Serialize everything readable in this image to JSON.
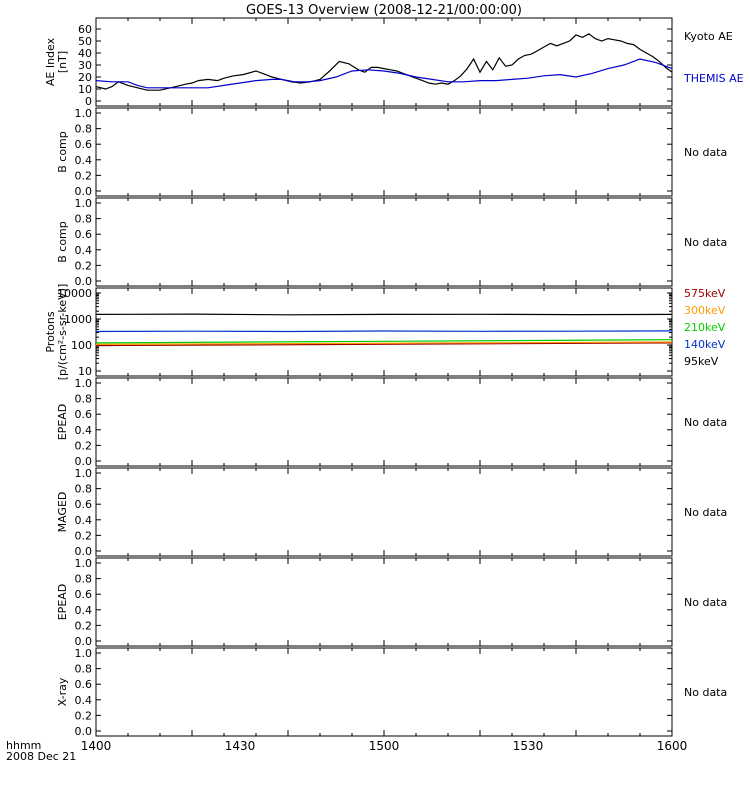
{
  "title": "GOES-13 Overview (2008-12-21/00:00:00)",
  "time_axis": {
    "ticks": [
      "1400",
      "1430",
      "1500",
      "1530",
      "1600"
    ],
    "corner_label_1": "hhmm",
    "corner_label_2": "2008 Dec 21"
  },
  "no_data_text": "No data",
  "chart_data": [
    {
      "type": "line",
      "panel": "ae",
      "ylabel": [
        "AE Index",
        "[nT]"
      ],
      "ylim": [
        0,
        65
      ],
      "yticks": [
        "0",
        "10",
        "20",
        "30",
        "40",
        "50",
        "60"
      ],
      "x_unit": "minutes after 1400",
      "series": [
        {
          "name": "Kyoto AE",
          "color": "#000000",
          "x": [
            0,
            3,
            5,
            7,
            10,
            13,
            16,
            20,
            25,
            28,
            30,
            32,
            35,
            38,
            40,
            43,
            46,
            50,
            53,
            55,
            58,
            61,
            64,
            67,
            70,
            73,
            76,
            79,
            82,
            84,
            86,
            88,
            90,
            92,
            94,
            96,
            98,
            100,
            102,
            104,
            106,
            108,
            110,
            112,
            114,
            116,
            118,
            120,
            122,
            124,
            126,
            128,
            130,
            132,
            134,
            136,
            138,
            140,
            142,
            144,
            146,
            148,
            150,
            152,
            154,
            156,
            158,
            160,
            162,
            164,
            166,
            168,
            170,
            172,
            174,
            176,
            178,
            180
          ],
          "values": [
            12,
            10,
            12,
            16,
            13,
            11,
            9,
            9,
            12,
            14,
            15,
            17,
            18,
            17,
            19,
            21,
            22,
            25,
            22,
            20,
            18,
            16,
            15,
            16,
            18,
            25,
            33,
            31,
            26,
            24,
            28,
            28,
            27,
            26,
            25,
            23,
            21,
            19,
            17,
            15,
            14,
            15,
            14,
            17,
            21,
            27,
            35,
            24,
            33,
            26,
            36,
            29,
            30,
            35,
            38,
            39,
            42,
            45,
            48,
            46,
            48,
            50,
            55,
            53,
            56,
            52,
            50,
            52,
            51,
            50,
            48,
            47,
            43,
            40,
            37,
            33,
            28,
            24
          ]
        },
        {
          "name": "THEMIS AE",
          "color": "#0000cc",
          "x": [
            0,
            5,
            10,
            13,
            16,
            20,
            25,
            30,
            35,
            40,
            45,
            50,
            55,
            58,
            62,
            66,
            70,
            75,
            80,
            85,
            90,
            95,
            100,
            105,
            110,
            115,
            120,
            125,
            130,
            135,
            140,
            145,
            150,
            155,
            160,
            165,
            170,
            175,
            180
          ],
          "values": [
            17,
            16,
            16,
            13,
            11,
            11,
            11,
            11,
            11,
            13,
            15,
            17,
            18,
            18,
            16,
            16,
            17,
            20,
            25,
            26,
            25,
            23,
            20,
            18,
            16,
            16,
            17,
            17,
            18,
            19,
            21,
            22,
            20,
            23,
            27,
            30,
            35,
            32,
            27
          ]
        }
      ]
    },
    {
      "type": "line",
      "panel": "b1",
      "ylabel": [
        "B comp"
      ],
      "ylim": [
        0,
        1
      ],
      "yticks": [
        "0.0",
        "0.2",
        "0.4",
        "0.6",
        "0.8",
        "1.0"
      ],
      "series": []
    },
    {
      "type": "line",
      "panel": "b2",
      "ylabel": [
        "B comp"
      ],
      "ylim": [
        0,
        1
      ],
      "yticks": [
        "0.0",
        "0.2",
        "0.4",
        "0.6",
        "0.8",
        "1.0"
      ],
      "series": []
    },
    {
      "type": "line",
      "panel": "protons",
      "ylabel": [
        "Protons",
        "[p/(cm²-s-sr-keV)]"
      ],
      "log_scale": true,
      "ylim": [
        10,
        10000
      ],
      "yticks": [
        "10",
        "100",
        "1000",
        "10000"
      ],
      "x_unit": "minutes after 1400",
      "series": [
        {
          "name": "575keV",
          "color": "#990000",
          "x": [
            0,
            180
          ],
          "values": [
            95,
            120
          ]
        },
        {
          "name": "300keV",
          "color": "#ff9900",
          "x": [
            0,
            180
          ],
          "values": [
            105,
            130
          ]
        },
        {
          "name": "210keV",
          "color": "#00cc00",
          "x": [
            0,
            180
          ],
          "values": [
            120,
            160
          ]
        },
        {
          "name": "140keV",
          "color": "#0033cc",
          "x": [
            0,
            30,
            60,
            90,
            120,
            150,
            180
          ],
          "values": [
            330,
            340,
            330,
            345,
            335,
            340,
            350
          ]
        },
        {
          "name": "95keV",
          "color": "#000000",
          "x": [
            0,
            30,
            60,
            90,
            120,
            150,
            180
          ],
          "values": [
            1500,
            1550,
            1450,
            1500,
            1520,
            1480,
            1500
          ]
        }
      ]
    },
    {
      "type": "line",
      "panel": "epead1",
      "ylabel": [
        "EPEAD"
      ],
      "ylim": [
        0,
        1
      ],
      "yticks": [
        "0.0",
        "0.2",
        "0.4",
        "0.6",
        "0.8",
        "1.0"
      ],
      "series": []
    },
    {
      "type": "line",
      "panel": "maged",
      "ylabel": [
        "MAGED"
      ],
      "ylim": [
        0,
        1
      ],
      "yticks": [
        "0.0",
        "0.2",
        "0.4",
        "0.6",
        "0.8",
        "1.0"
      ],
      "series": []
    },
    {
      "type": "line",
      "panel": "epead2",
      "ylabel": [
        "EPEAD"
      ],
      "ylim": [
        0,
        1
      ],
      "yticks": [
        "0.0",
        "0.2",
        "0.4",
        "0.6",
        "0.8",
        "1.0"
      ],
      "series": []
    },
    {
      "type": "line",
      "panel": "xray",
      "ylabel": [
        "X-ray"
      ],
      "ylim": [
        0,
        1
      ],
      "yticks": [
        "0.0",
        "0.2",
        "0.4",
        "0.6",
        "0.8",
        "1.0"
      ],
      "series": []
    }
  ]
}
